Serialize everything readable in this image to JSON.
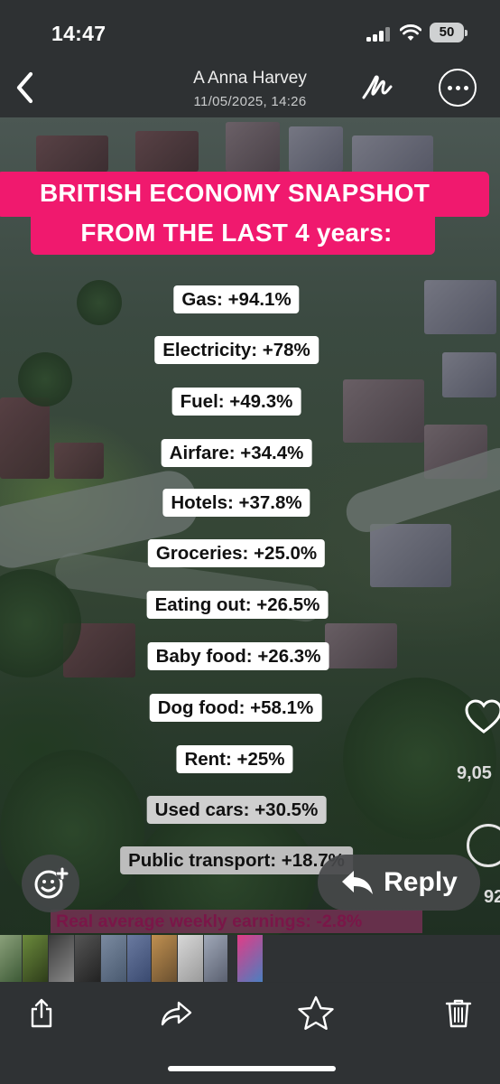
{
  "status_bar": {
    "time": "14:47",
    "battery": "50"
  },
  "header": {
    "sender": "A Anna Harvey",
    "timestamp": "11/05/2025, 14:26"
  },
  "post": {
    "title_line1": "BRITISH ECONOMY SNAPSHOT",
    "title_line2": "FROM THE LAST 4 years:",
    "stats": [
      "Gas: +94.1%",
      "Electricity: +78%",
      "Fuel: +49.3%",
      "Airfare: +34.4%",
      "Hotels: +37.8%",
      "Groceries: +25.0%",
      "Eating out: +26.5%",
      "Baby food: +26.3%",
      "Dog food: +58.1%",
      "Rent: +25%",
      "Used cars: +30.5%",
      "Public transport: +18.7%"
    ],
    "earnings": "Real average weekly earnings: -2.8%",
    "like_count": "9,05",
    "side_count": "92"
  },
  "actions": {
    "reply_label": "Reply"
  }
}
